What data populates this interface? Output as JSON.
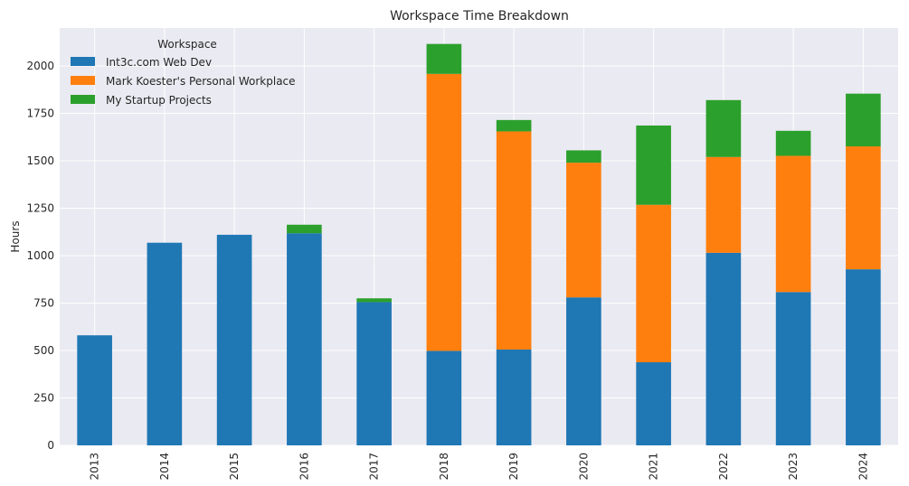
{
  "chart_data": {
    "type": "bar",
    "stacked": true,
    "title": "Workspace Time Breakdown",
    "xlabel": "",
    "ylabel": "Hours",
    "ylim": [
      0,
      2200
    ],
    "yticks": [
      0,
      250,
      500,
      750,
      1000,
      1250,
      1500,
      1750,
      2000
    ],
    "grid": true,
    "legend_title": "Workspace",
    "legend_position": "top-left",
    "categories": [
      "2013",
      "2014",
      "2015",
      "2016",
      "2017",
      "2018",
      "2019",
      "2020",
      "2021",
      "2022",
      "2023",
      "2024"
    ],
    "series": [
      {
        "name": "Int3c.com Web Dev",
        "color": "#1f77b4",
        "values": [
          580,
          1068,
          1110,
          1118,
          755,
          498,
          505,
          780,
          438,
          1015,
          808,
          928
        ]
      },
      {
        "name": "Mark Koester's Personal Workplace",
        "color": "#ff7f0e",
        "values": [
          0,
          0,
          0,
          0,
          0,
          1460,
          1150,
          710,
          830,
          505,
          718,
          648
        ]
      },
      {
        "name": "My Startup Projects",
        "color": "#2ca02c",
        "values": [
          0,
          0,
          0,
          45,
          20,
          158,
          60,
          65,
          418,
          300,
          132,
          278
        ]
      }
    ]
  },
  "colors": {
    "plot_background": "#eaeaf2",
    "grid": "#ffffff",
    "text": "#262626"
  }
}
